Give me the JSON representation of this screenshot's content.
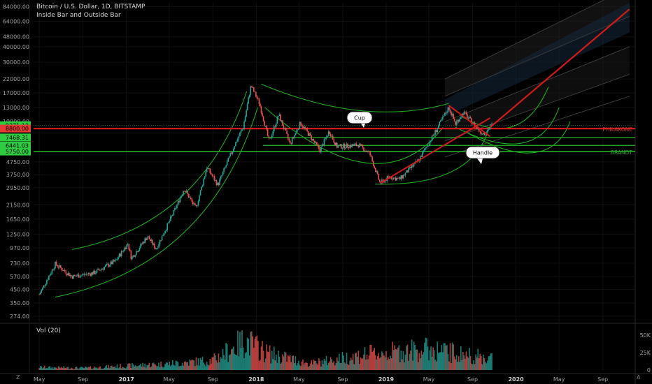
{
  "header": {
    "title": "Bitcoin / U.S. Dollar, 1D, BITSTAMP",
    "subtitle": "Inside Bar and Outside Bar"
  },
  "volume_panel": {
    "label": "Vol (20)",
    "ticks": [
      "50K",
      "25K",
      "0"
    ]
  },
  "controls": {
    "zoom_reset": "Z",
    "auto_scale": "A"
  },
  "colors": {
    "up": "#26a69a",
    "down": "#ef5350",
    "curve": "#1faa1f",
    "red_line": "#d01b1b",
    "green_level": "#21a121",
    "channel": "#3a3a3a"
  },
  "annotations": {
    "cup": "Cup",
    "handle": "Handle",
    "philakone": "PHILAKONE",
    "brandt": "BRANDT"
  },
  "chart_data": {
    "type": "candlestick",
    "title": "Bitcoin / U.S. Dollar, 1D, BITSTAMP",
    "subtitle": "Inside Bar and Outside Bar",
    "y_scale": "log",
    "ylim": [
      250,
      90000
    ],
    "y_ticks": [
      "84000.00",
      "64000.00",
      "48000.00",
      "40000.00",
      "30000.00",
      "22000.00",
      "17000.00",
      "13000.00",
      "10000.00",
      "4750.00",
      "3750.00",
      "2950.00",
      "2150.00",
      "1650.00",
      "1250.00",
      "970.00",
      "730.00",
      "570.00",
      "450.00",
      "350.00",
      "274.00"
    ],
    "price_tags": [
      {
        "label": "9371.13",
        "value": 9371.13,
        "color": "#2ecc40"
      },
      {
        "label": "8800.00",
        "value": 8800,
        "color": "#e53935"
      },
      {
        "label": "7468.31",
        "value": 7468.31,
        "color": "#2ecc40"
      },
      {
        "label": "6441.03",
        "value": 6441.03,
        "color": "#2ecc40"
      },
      {
        "label": "5750.00",
        "value": 5750,
        "color": "#2ecc40"
      }
    ],
    "x_ticks": [
      "May",
      "Sep",
      "2017",
      "May",
      "Sep",
      "2018",
      "May",
      "Sep",
      "2019",
      "May",
      "Sep",
      "2020",
      "May",
      "Sep"
    ],
    "x_tick_bold": [
      false,
      false,
      true,
      false,
      false,
      true,
      false,
      false,
      true,
      false,
      false,
      true,
      false,
      false
    ],
    "x_range": [
      "2016-04",
      "2020-12"
    ],
    "levels": [
      {
        "name": "PHILAKONE",
        "value": 8800
      },
      {
        "name": "BRANDT",
        "value": 5750
      }
    ],
    "price_path": [
      [
        "2016-05-01",
        410
      ],
      [
        "2016-06-15",
        720
      ],
      [
        "2016-08-01",
        570
      ],
      [
        "2016-10-01",
        610
      ],
      [
        "2016-12-01",
        760
      ],
      [
        "2017-01-05",
        1050
      ],
      [
        "2017-01-15",
        800
      ],
      [
        "2017-03-01",
        1200
      ],
      [
        "2017-03-25",
        950
      ],
      [
        "2017-05-15",
        1900
      ],
      [
        "2017-06-12",
        2900
      ],
      [
        "2017-07-15",
        2000
      ],
      [
        "2017-08-15",
        4300
      ],
      [
        "2017-09-15",
        3100
      ],
      [
        "2017-11-01",
        6500
      ],
      [
        "2017-11-25",
        9000
      ],
      [
        "2017-12-17",
        19500
      ],
      [
        "2018-01-10",
        14000
      ],
      [
        "2018-02-06",
        6900
      ],
      [
        "2018-03-05",
        11400
      ],
      [
        "2018-04-06",
        6600
      ],
      [
        "2018-05-05",
        9800
      ],
      [
        "2018-06-29",
        5900
      ],
      [
        "2018-07-25",
        8400
      ],
      [
        "2018-08-15",
        6300
      ],
      [
        "2018-10-15",
        6500
      ],
      [
        "2018-11-15",
        5600
      ],
      [
        "2018-12-15",
        3200
      ],
      [
        "2019-01-10",
        3600
      ],
      [
        "2019-02-08",
        3450
      ],
      [
        "2019-04-02",
        4900
      ],
      [
        "2019-05-15",
        7900
      ],
      [
        "2019-06-26",
        13000
      ],
      [
        "2019-07-15",
        9600
      ],
      [
        "2019-08-06",
        11900
      ],
      [
        "2019-09-24",
        8200
      ],
      [
        "2019-10-05",
        8100
      ],
      [
        "2019-10-25",
        9371
      ]
    ],
    "volume": [
      [
        "2016-05",
        4
      ],
      [
        "2016-09",
        3
      ],
      [
        "2017-01",
        6
      ],
      [
        "2017-05",
        9
      ],
      [
        "2017-09",
        14
      ],
      [
        "2017-12",
        42
      ],
      [
        "2018-02",
        24
      ],
      [
        "2018-06",
        9
      ],
      [
        "2018-11",
        22
      ],
      [
        "2019-05",
        30
      ],
      [
        "2019-10",
        18
      ]
    ]
  }
}
